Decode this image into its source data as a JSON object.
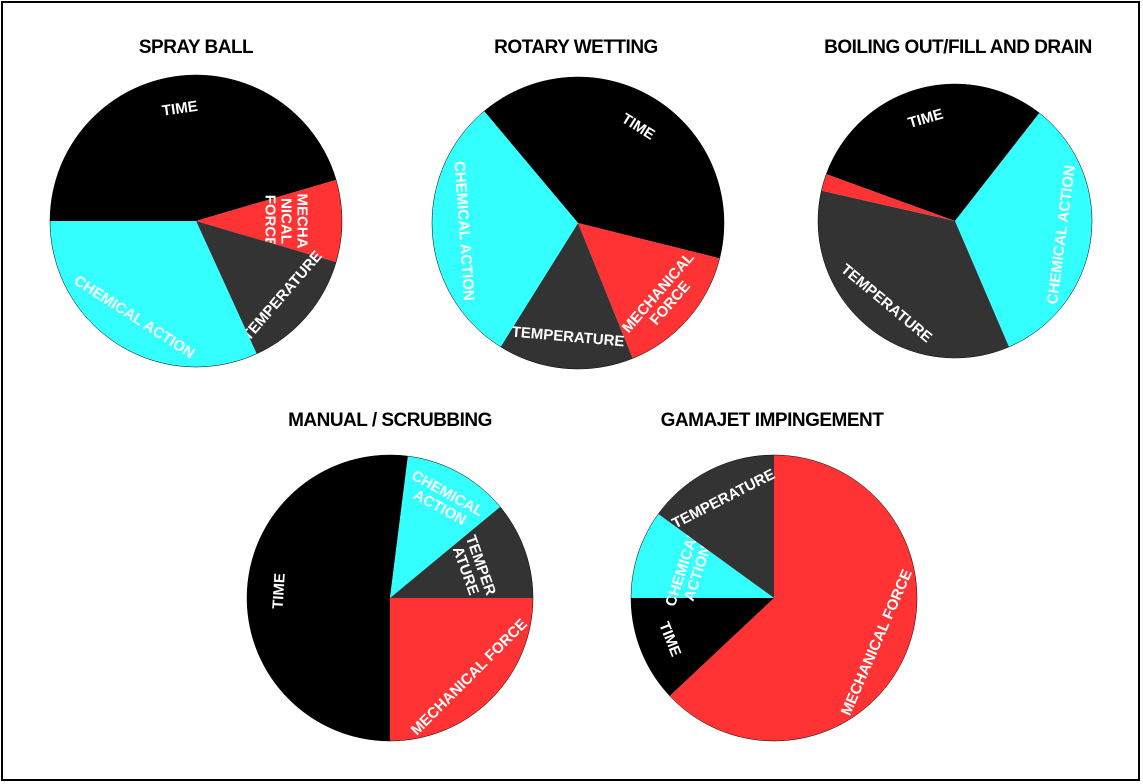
{
  "colors": {
    "mechanical_force": "#ff3333",
    "time": "#000000",
    "chemical_action": "#33ffff",
    "temperature": "#333333"
  },
  "chart_data": [
    {
      "type": "pie",
      "title": "SPRAY BALL",
      "slices": [
        {
          "label": "TIME",
          "value": 50,
          "color": "#000000"
        },
        {
          "label": "MECHA NICAL FORCE",
          "value": 10,
          "color": "#ff3333"
        },
        {
          "label": "TEMPERATURE",
          "value": 15,
          "color": "#333333"
        },
        {
          "label": "CHEMICAL ACTION",
          "value": 35,
          "color": "#33ffff"
        }
      ]
    },
    {
      "type": "pie",
      "title": "ROTARY WETTING",
      "slices": [
        {
          "label": "TIME",
          "value": 40,
          "color": "#000000"
        },
        {
          "label": "MECHANICAL FORCE",
          "value": 15,
          "color": "#ff3333"
        },
        {
          "label": "TEMPERATURE",
          "value": 15,
          "color": "#333333"
        },
        {
          "label": "CHEMICAL ACTION",
          "value": 30,
          "color": "#33ffff"
        }
      ]
    },
    {
      "type": "pie",
      "title": "BOILING OUT/FILL AND DRAIN",
      "slices": [
        {
          "label": "TIME",
          "value": 30,
          "color": "#000000"
        },
        {
          "label": "CHEMICAL ACTION",
          "value": 33,
          "color": "#33ffff"
        },
        {
          "label": "TEMPERATURE",
          "value": 35,
          "color": "#333333"
        },
        {
          "label": "",
          "value": 2,
          "color": "#ff3333"
        }
      ]
    },
    {
      "type": "pie",
      "title": "MANUAL / SCRUBBING",
      "slices": [
        {
          "label": "TIME",
          "value": 52,
          "color": "#000000"
        },
        {
          "label": "CHEMICAL ACTION",
          "value": 12,
          "color": "#33ffff"
        },
        {
          "label": "TEMPER ATURE",
          "value": 11,
          "color": "#333333"
        },
        {
          "label": "MECHANICAL FORCE",
          "value": 25,
          "color": "#ff3333"
        }
      ]
    },
    {
      "type": "pie",
      "title": "GAMAJET IMPINGEMENT",
      "slices": [
        {
          "label": "MECHANICAL FORCE",
          "value": 63,
          "color": "#ff3333"
        },
        {
          "label": "TIME",
          "value": 12,
          "color": "#000000"
        },
        {
          "label": "CHEMICAL ACTION",
          "value": 10,
          "color": "#33ffff"
        },
        {
          "label": "TEMPERATURE",
          "value": 15,
          "color": "#333333"
        }
      ]
    }
  ]
}
